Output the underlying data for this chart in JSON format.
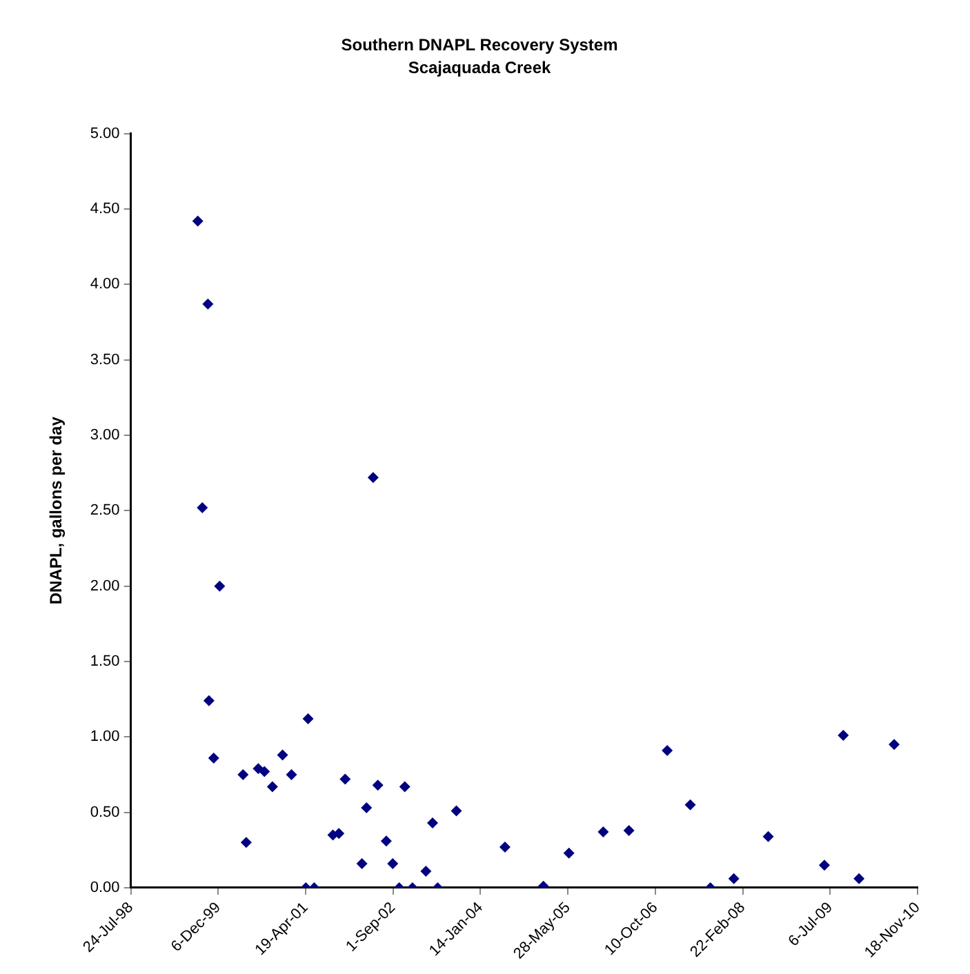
{
  "chart_data": {
    "type": "scatter",
    "title": "Southern DNAPL Recovery System",
    "subtitle": "Scajaquada Creek",
    "ylabel": "DNAPL, gallons per day",
    "x": [
      "1999-08-11",
      "1999-10-08",
      "1999-09-06",
      "1999-12-14",
      "1999-10-14",
      "1999-11-10",
      "2000-04-26",
      "2000-05-14",
      "2000-07-22",
      "2000-08-26",
      "2000-10-11",
      "2000-12-08",
      "2001-01-28",
      "2001-05-03",
      "2001-04-20",
      "2001-06-07",
      "2001-09-22",
      "2001-10-26",
      "2001-12-01",
      "2002-03-07",
      "2002-04-02",
      "2002-05-10",
      "2002-06-06",
      "2002-07-24",
      "2002-08-30",
      "2002-10-06",
      "2002-11-07",
      "2002-12-21",
      "2003-03-08",
      "2003-04-15",
      "2003-05-14",
      "2003-08-29",
      "2004-06-02",
      "2005-01-08",
      "2005-06-03",
      "2005-12-16",
      "2006-05-12",
      "2006-12-17",
      "2007-04-28",
      "2007-08-21",
      "2008-01-02",
      "2008-07-17",
      "2009-06-03",
      "2009-09-19",
      "2009-12-18",
      "2010-07-07"
    ],
    "series": [
      {
        "color": "#000080",
        "values": [
          4.42,
          3.87,
          2.52,
          2.0,
          1.24,
          0.86,
          0.75,
          0.3,
          0.79,
          0.77,
          0.67,
          0.88,
          0.75,
          1.12,
          0,
          0,
          0.35,
          0.36,
          0.72,
          0.16,
          0.53,
          2.72,
          0.68,
          0.31,
          0.16,
          0,
          0.67,
          0,
          0.11,
          0.43,
          0,
          0.51,
          0.27,
          0.01,
          0.23,
          0.37,
          0.38,
          0.91,
          0.55,
          0,
          0.06,
          0.34,
          0.15,
          1.01,
          0.06,
          0.95
        ]
      }
    ],
    "xlim": [
      "1998-07-24",
      "2010-11-18"
    ],
    "xticks": [
      {
        "value": "1998-07-24",
        "label": "24-Jul-98"
      },
      {
        "value": "1999-12-06",
        "label": "6-Dec-99"
      },
      {
        "value": "2001-04-19",
        "label": "19-Apr-01"
      },
      {
        "value": "2002-09-01",
        "label": "1-Sep-02"
      },
      {
        "value": "2004-01-14",
        "label": "14-Jan-04"
      },
      {
        "value": "2005-05-28",
        "label": "28-May-05"
      },
      {
        "value": "2006-10-10",
        "label": "10-Oct-06"
      },
      {
        "value": "2008-02-22",
        "label": "22-Feb-08"
      },
      {
        "value": "2009-07-06",
        "label": "6-Jul-09"
      },
      {
        "value": "2010-11-18",
        "label": "18-Nov-10"
      }
    ],
    "ylim": [
      0,
      5
    ],
    "yticks": [
      {
        "value": 0,
        "label": "0.00"
      },
      {
        "value": 0.5,
        "label": "0.50"
      },
      {
        "value": 1,
        "label": "1.00"
      },
      {
        "value": 1.5,
        "label": "1.50"
      },
      {
        "value": 2,
        "label": "2.00"
      },
      {
        "value": 2.5,
        "label": "2.50"
      },
      {
        "value": 3,
        "label": "3.00"
      },
      {
        "value": 3.5,
        "label": "3.50"
      },
      {
        "value": 4,
        "label": "4.00"
      },
      {
        "value": 4.5,
        "label": "4.50"
      },
      {
        "value": 5,
        "label": "5.00"
      }
    ],
    "grid": false,
    "legend": false,
    "marker": "diamond"
  }
}
